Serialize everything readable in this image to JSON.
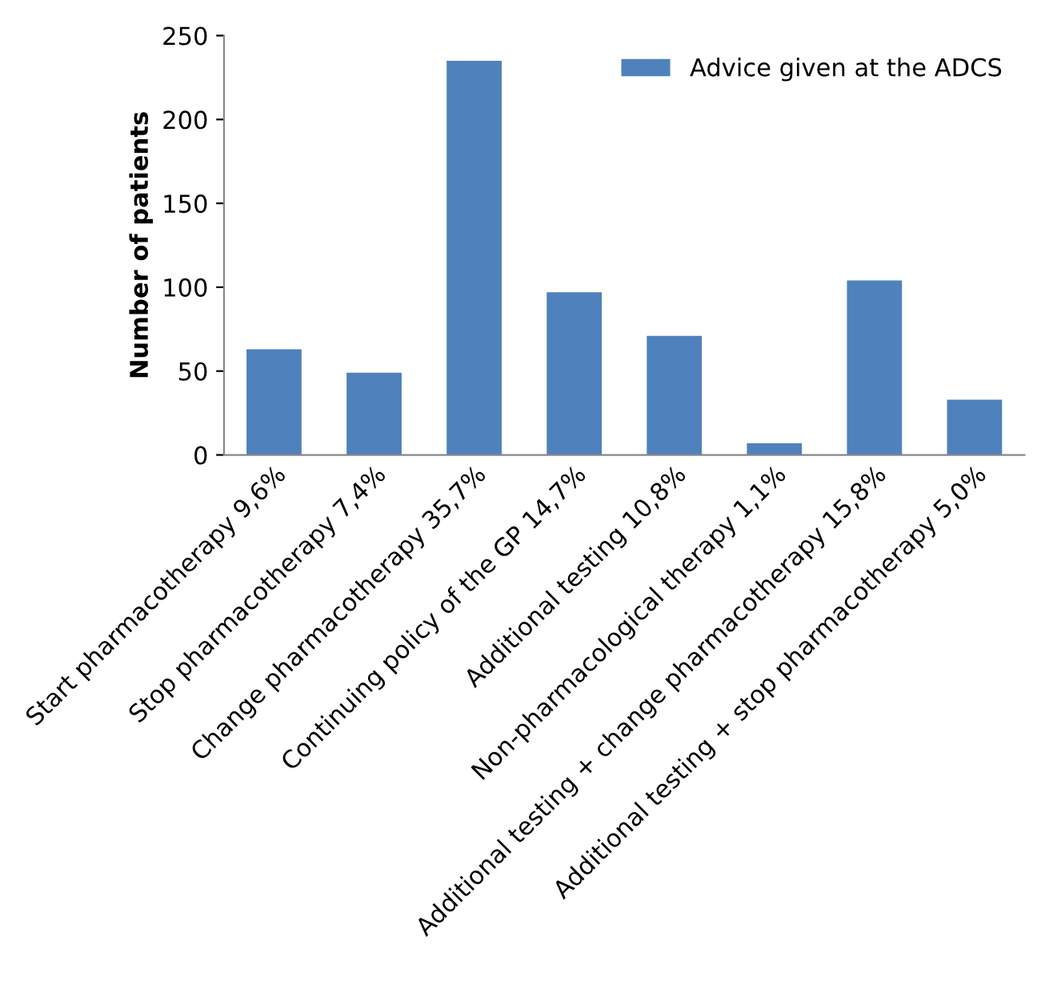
{
  "chart_data": {
    "type": "bar",
    "ylabel": "Number of patients",
    "categories": [
      "Start pharmacotherapy 9,6%",
      "Stop pharmacotherapy 7,4%",
      "Change pharmacotherapy 35,7%",
      "Continuing policy of the GP 14,7%",
      "Additional testing 10,8%",
      "Non-pharmacological therapy 1,1%",
      "Additional testing + change pharmacotherapy 15,8%",
      "Additional testing + stop pharmacotherapy 5,0%"
    ],
    "series": [
      {
        "name": "Advice given at the ADCS",
        "color": "#4f81bd",
        "values": [
          63,
          49,
          235,
          97,
          71,
          7,
          104,
          33
        ]
      }
    ],
    "ylim": [
      0,
      250
    ],
    "yticks": [
      0,
      50,
      100,
      150,
      200,
      250
    ],
    "grid": false,
    "legend": "top right"
  }
}
